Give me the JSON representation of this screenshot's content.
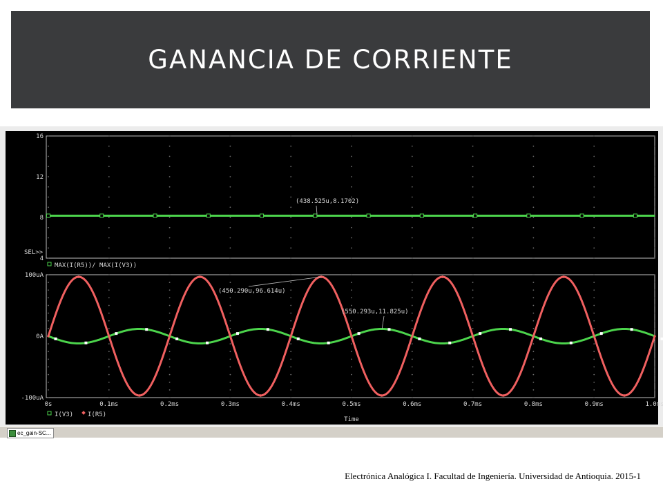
{
  "slide": {
    "title": "GANANCIA DE CORRIENTE",
    "footer": "Electrónica Analógica I.  Facultad de Ingeniería. Universidad de Antioquia.  2015-1"
  },
  "taskbar": {
    "item_label": "ec_gain-SC..."
  },
  "colors": {
    "title_bar": "#3a3b3d",
    "plot_bg": "#000000",
    "grid_dot": "#6f6f6f",
    "axis_text": "#d9d9d9",
    "trace_green": "#4cd44c",
    "trace_red": "#f06060"
  },
  "chart_data": [
    {
      "type": "line",
      "title": "",
      "ylim": [
        4,
        16
      ],
      "yticks": [
        "16",
        "12",
        "8",
        "4"
      ],
      "sel_label": "SEL>>",
      "series": [
        {
          "name": "MAX(I(R5))/ MAX(I(V3))",
          "color": "#4cd44c",
          "marker": "square",
          "constant": 8.1702
        }
      ],
      "annotations": [
        {
          "text": "(438.525u,8.1702)",
          "x": 438.525,
          "y": 8.1702
        }
      ]
    },
    {
      "type": "line",
      "title": "",
      "xlabel": "Time",
      "xlim": [
        0,
        1.0
      ],
      "xticks": [
        "0s",
        "0.1ms",
        "0.2ms",
        "0.3ms",
        "0.4ms",
        "0.5ms",
        "0.6ms",
        "0.7ms",
        "0.8ms",
        "0.9ms",
        "1.0ms"
      ],
      "ylim": [
        -100,
        100
      ],
      "yticks": [
        "100uA",
        "0A",
        "-100uA"
      ],
      "series": [
        {
          "name": "I(V3)",
          "color": "#4cd44c",
          "marker": "square",
          "amplitude": 11.825,
          "frequency_khz": 5,
          "phase": "inverted"
        },
        {
          "name": "I(R5)",
          "color": "#f06060",
          "marker": "diamond",
          "amplitude": 96.614,
          "frequency_khz": 5,
          "phase": "normal"
        }
      ],
      "annotations": [
        {
          "text": "(450.290u,96.614u)",
          "x": 450.29,
          "y": 96.614
        },
        {
          "text": "(550.293u,11.825u)",
          "x": 550.293,
          "y": 11.825
        }
      ]
    }
  ]
}
